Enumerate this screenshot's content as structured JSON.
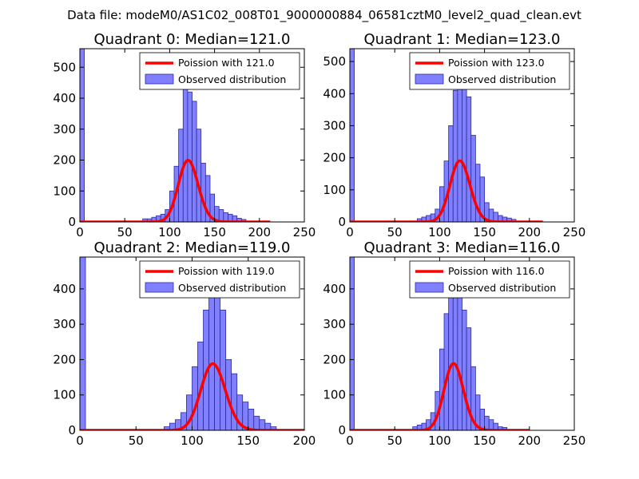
{
  "figure_title": "Data file: modeM0/AS1C02_008T01_9000000884_06581cztM0_level2_quad_clean.evt",
  "colors": {
    "bar_fill": "#8080ff",
    "bar_edge": "#2a2aa0",
    "fit_line": "#ff0000",
    "axis": "#000000",
    "background": "#ffffff"
  },
  "chart_data": [
    {
      "type": "bar",
      "title": "Quadrant 0: Median=121.0",
      "xlim": [
        0,
        250
      ],
      "ylim": [
        0,
        560
      ],
      "xticks": [
        0,
        50,
        100,
        150,
        200,
        250
      ],
      "yticks": [
        0,
        100,
        200,
        300,
        400,
        500
      ],
      "legend_position": "upper-right",
      "bin_width": 5,
      "legend": {
        "fit_label": "Poission with 121.0",
        "hist_label": "Observed distribution"
      },
      "poisson_mean": 121,
      "poisson_scale": 5500,
      "fit_range": [
        0,
        212
      ],
      "bins": [
        [
          0,
          560
        ],
        [
          70,
          10
        ],
        [
          75,
          10
        ],
        [
          80,
          15
        ],
        [
          85,
          20
        ],
        [
          90,
          25
        ],
        [
          95,
          40
        ],
        [
          100,
          100
        ],
        [
          105,
          180
        ],
        [
          110,
          300
        ],
        [
          115,
          430
        ],
        [
          120,
          420
        ],
        [
          125,
          390
        ],
        [
          130,
          300
        ],
        [
          135,
          190
        ],
        [
          140,
          150
        ],
        [
          145,
          90
        ],
        [
          150,
          50
        ],
        [
          155,
          40
        ],
        [
          160,
          30
        ],
        [
          165,
          25
        ],
        [
          170,
          20
        ],
        [
          175,
          12
        ],
        [
          180,
          8
        ]
      ]
    },
    {
      "type": "bar",
      "title": "Quadrant 1: Median=123.0",
      "xlim": [
        0,
        250
      ],
      "ylim": [
        0,
        540
      ],
      "xticks": [
        0,
        50,
        100,
        150,
        200,
        250
      ],
      "yticks": [
        0,
        100,
        200,
        300,
        400,
        500
      ],
      "legend_position": "upper-right",
      "bin_width": 5,
      "legend": {
        "fit_label": "Poission with 123.0",
        "hist_label": "Observed distribution"
      },
      "poisson_mean": 123,
      "poisson_scale": 5300,
      "fit_range": [
        0,
        215
      ],
      "bins": [
        [
          0,
          540
        ],
        [
          75,
          10
        ],
        [
          80,
          15
        ],
        [
          85,
          20
        ],
        [
          90,
          25
        ],
        [
          95,
          40
        ],
        [
          100,
          110
        ],
        [
          105,
          190
        ],
        [
          110,
          300
        ],
        [
          115,
          410
        ],
        [
          120,
          440
        ],
        [
          125,
          500
        ],
        [
          130,
          390
        ],
        [
          135,
          270
        ],
        [
          140,
          180
        ],
        [
          145,
          140
        ],
        [
          150,
          60
        ],
        [
          155,
          40
        ],
        [
          160,
          30
        ],
        [
          165,
          20
        ],
        [
          170,
          15
        ],
        [
          175,
          12
        ],
        [
          180,
          8
        ]
      ]
    },
    {
      "type": "bar",
      "title": "Quadrant 2: Median=119.0",
      "xlim": [
        0,
        200
      ],
      "ylim": [
        0,
        490
      ],
      "xticks": [
        0,
        50,
        100,
        150,
        200
      ],
      "yticks": [
        0,
        100,
        200,
        300,
        400
      ],
      "legend_position": "upper-right",
      "bin_width": 5,
      "legend": {
        "fit_label": "Poission with 119.0",
        "hist_label": "Observed distribution"
      },
      "poisson_mean": 119,
      "poisson_scale": 5150,
      "fit_range": [
        0,
        200
      ],
      "bins": [
        [
          0,
          490
        ],
        [
          75,
          10
        ],
        [
          80,
          20
        ],
        [
          85,
          30
        ],
        [
          90,
          50
        ],
        [
          95,
          100
        ],
        [
          100,
          180
        ],
        [
          105,
          250
        ],
        [
          110,
          340
        ],
        [
          115,
          410
        ],
        [
          120,
          390
        ],
        [
          125,
          340
        ],
        [
          130,
          200
        ],
        [
          135,
          160
        ],
        [
          140,
          100
        ],
        [
          145,
          80
        ],
        [
          150,
          60
        ],
        [
          155,
          40
        ],
        [
          160,
          30
        ],
        [
          165,
          20
        ],
        [
          170,
          10
        ]
      ]
    },
    {
      "type": "bar",
      "title": "Quadrant 3: Median=116.0",
      "xlim": [
        0,
        250
      ],
      "ylim": [
        0,
        490
      ],
      "xticks": [
        0,
        50,
        100,
        150,
        200,
        250
      ],
      "yticks": [
        0,
        100,
        200,
        300,
        400
      ],
      "legend_position": "upper-right",
      "bin_width": 5,
      "legend": {
        "fit_label": "Poission with 116.0",
        "hist_label": "Observed distribution"
      },
      "poisson_mean": 116,
      "poisson_scale": 5100,
      "fit_range": [
        0,
        200
      ],
      "bins": [
        [
          0,
          490
        ],
        [
          70,
          10
        ],
        [
          75,
          15
        ],
        [
          80,
          20
        ],
        [
          85,
          30
        ],
        [
          90,
          50
        ],
        [
          95,
          110
        ],
        [
          100,
          230
        ],
        [
          105,
          330
        ],
        [
          110,
          440
        ],
        [
          115,
          410
        ],
        [
          120,
          430
        ],
        [
          125,
          340
        ],
        [
          130,
          290
        ],
        [
          135,
          180
        ],
        [
          140,
          100
        ],
        [
          145,
          60
        ],
        [
          150,
          40
        ],
        [
          155,
          30
        ],
        [
          160,
          20
        ],
        [
          165,
          10
        ],
        [
          170,
          8
        ]
      ]
    }
  ]
}
